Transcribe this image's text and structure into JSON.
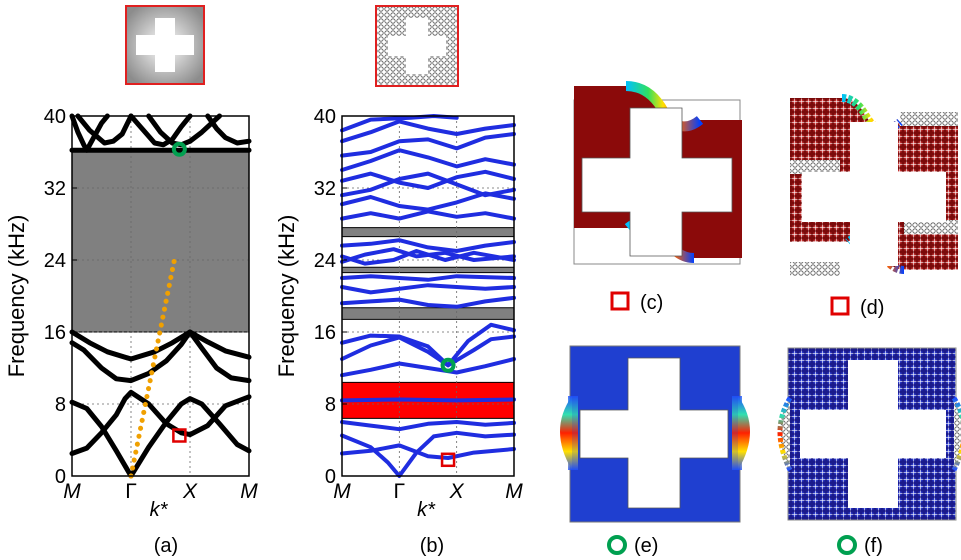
{
  "chart_data": [
    {
      "panel": "(a)",
      "type": "line",
      "ylabel": "Frequency (kHz)",
      "xlabel": "k*",
      "x_ticks": [
        "M",
        "Γ",
        "X",
        "M"
      ],
      "ylim": [
        0,
        40
      ],
      "y_ticks": [
        "0",
        "8",
        "16",
        "24",
        "32",
        "40"
      ],
      "grid": true,
      "band_gaps": [
        {
          "from": 16.0,
          "to": 36.2,
          "color": "#808080"
        }
      ],
      "bands": [
        [
          [
            0,
            40.0
          ],
          [
            0.1,
            38.2
          ],
          [
            0.2,
            36.8
          ],
          [
            0.25,
            36.2
          ],
          [
            0.3,
            36.8
          ],
          [
            0.4,
            38.0
          ],
          [
            0.5,
            39.2
          ],
          [
            0.6,
            40.0
          ]
        ],
        [
          [
            0.1,
            40.0
          ],
          [
            0.3,
            38.4
          ],
          [
            0.55,
            37.0
          ],
          [
            0.7,
            37.2
          ],
          [
            0.85,
            38.0
          ],
          [
            1.0,
            40.0
          ]
        ],
        [
          [
            1.0,
            40.0
          ],
          [
            1.2,
            38.5
          ],
          [
            1.4,
            37.0
          ],
          [
            1.55,
            36.8
          ],
          [
            1.7,
            37.4
          ],
          [
            1.85,
            38.8
          ],
          [
            2.0,
            40.0
          ]
        ],
        [
          [
            1.3,
            40.0
          ],
          [
            1.5,
            38.2
          ],
          [
            1.7,
            37.0
          ],
          [
            1.85,
            36.8
          ],
          [
            2.0,
            37.2
          ]
        ],
        [
          [
            2.0,
            37.2
          ],
          [
            2.2,
            38.2
          ],
          [
            2.4,
            39.4
          ],
          [
            2.5,
            40.0
          ]
        ],
        [
          [
            2.3,
            40.0
          ],
          [
            2.45,
            38.6
          ],
          [
            2.6,
            37.6
          ],
          [
            2.8,
            37.0
          ],
          [
            3.0,
            37.2
          ]
        ],
        [
          [
            0,
            36.2
          ],
          [
            1.0,
            36.2
          ],
          [
            2.0,
            36.2
          ],
          [
            3.0,
            36.2
          ]
        ],
        [
          [
            0,
            16.0
          ],
          [
            0.3,
            14.8
          ],
          [
            0.6,
            13.8
          ],
          [
            1.0,
            13.0
          ],
          [
            1.4,
            13.8
          ],
          [
            1.7,
            14.8
          ],
          [
            2.0,
            16.0
          ],
          [
            2.3,
            14.9
          ],
          [
            2.6,
            13.9
          ],
          [
            3.0,
            13.2
          ]
        ],
        [
          [
            0,
            14.8
          ],
          [
            0.2,
            14.0
          ],
          [
            0.5,
            12.0
          ],
          [
            0.75,
            10.8
          ],
          [
            1.0,
            10.6
          ],
          [
            1.3,
            11.4
          ],
          [
            1.6,
            12.8
          ],
          [
            1.85,
            14.6
          ],
          [
            2.0,
            16.0
          ],
          [
            2.2,
            14.2
          ],
          [
            2.45,
            12.0
          ],
          [
            2.7,
            10.9
          ],
          [
            3.0,
            10.6
          ]
        ],
        [
          [
            0,
            8.2
          ],
          [
            0.25,
            7.5
          ],
          [
            0.5,
            5.5
          ],
          [
            0.75,
            2.8
          ],
          [
            1.0,
            0.0
          ],
          [
            1.3,
            3.2
          ],
          [
            1.6,
            6.0
          ],
          [
            1.85,
            8.0
          ],
          [
            2.0,
            8.6
          ],
          [
            2.2,
            8.0
          ],
          [
            2.5,
            5.8
          ],
          [
            2.8,
            3.5
          ],
          [
            3.0,
            2.8
          ]
        ],
        [
          [
            0,
            2.5
          ],
          [
            0.25,
            3.1
          ],
          [
            0.5,
            4.8
          ],
          [
            0.75,
            6.8
          ],
          [
            0.9,
            8.6
          ],
          [
            1.0,
            9.3
          ],
          [
            1.3,
            8.0
          ],
          [
            1.6,
            5.8
          ],
          [
            1.85,
            4.8
          ],
          [
            2.0,
            4.6
          ],
          [
            2.3,
            5.6
          ],
          [
            2.6,
            7.8
          ],
          [
            3.0,
            8.8
          ]
        ]
      ],
      "dotted_line": {
        "color": "#f0a000",
        "points": [
          [
            1.0,
            0.0
          ],
          [
            1.75,
            24.5
          ]
        ]
      },
      "markers": [
        {
          "shape": "circle",
          "color": "#00a050",
          "x": 1.82,
          "y": 36.3
        },
        {
          "shape": "square",
          "color": "#e00000",
          "x": 1.82,
          "y": 4.5
        }
      ]
    },
    {
      "panel": "(b)",
      "type": "line",
      "ylabel": "Frequency (kHz)",
      "xlabel": "k*",
      "x_ticks": [
        "M",
        "Γ",
        "X",
        "M"
      ],
      "ylim": [
        0,
        40
      ],
      "y_ticks": [
        "0",
        "8",
        "16",
        "24",
        "32",
        "40"
      ],
      "grid": true,
      "band_gaps": [
        {
          "from": 6.4,
          "to": 10.4,
          "color": "#ff0000"
        },
        {
          "from": 17.4,
          "to": 18.7,
          "color": "#808080"
        },
        {
          "from": 22.6,
          "to": 23.2,
          "color": "#808080"
        },
        {
          "from": 26.6,
          "to": 27.6,
          "color": "#808080"
        }
      ],
      "bands": [
        [
          [
            0,
            2.5
          ],
          [
            0.5,
            2.8
          ],
          [
            1.0,
            3.4
          ],
          [
            1.5,
            2.2
          ],
          [
            1.85,
            2.0
          ],
          [
            2.3,
            2.6
          ],
          [
            3.0,
            3.0
          ]
        ],
        [
          [
            0,
            4.5
          ],
          [
            0.5,
            3.2
          ],
          [
            0.8,
            1.5
          ],
          [
            1.0,
            0.0
          ],
          [
            1.3,
            2.6
          ],
          [
            1.6,
            4.4
          ],
          [
            2.0,
            4.8
          ],
          [
            2.5,
            4.4
          ],
          [
            3.0,
            4.6
          ]
        ],
        [
          [
            0,
            6.0
          ],
          [
            0.5,
            5.6
          ],
          [
            1.0,
            5.2
          ],
          [
            1.5,
            5.8
          ],
          [
            2.0,
            6.0
          ],
          [
            2.5,
            5.7
          ],
          [
            3.0,
            5.9
          ]
        ],
        [
          [
            0,
            8.4
          ],
          [
            1.0,
            8.5
          ],
          [
            2.0,
            8.4
          ],
          [
            3.0,
            8.5
          ]
        ],
        [
          [
            0,
            11.2
          ],
          [
            0.5,
            11.8
          ],
          [
            1.0,
            12.5
          ],
          [
            1.5,
            12.0
          ],
          [
            2.0,
            11.5
          ],
          [
            2.5,
            12.2
          ],
          [
            3.0,
            13.0
          ]
        ],
        [
          [
            0,
            13.0
          ],
          [
            0.5,
            14.5
          ],
          [
            1.0,
            15.4
          ],
          [
            1.5,
            13.8
          ],
          [
            1.85,
            12.3
          ],
          [
            2.3,
            14.0
          ],
          [
            2.6,
            15.2
          ],
          [
            3.0,
            15.5
          ]
        ],
        [
          [
            0,
            14.8
          ],
          [
            0.5,
            15.6
          ],
          [
            1.0,
            15.5
          ],
          [
            1.5,
            14.4
          ],
          [
            1.85,
            12.3
          ],
          [
            2.2,
            15.0
          ],
          [
            2.6,
            16.8
          ],
          [
            3.0,
            16.2
          ]
        ],
        [
          [
            0,
            19.2
          ],
          [
            0.5,
            19.4
          ],
          [
            1.0,
            19.6
          ],
          [
            1.5,
            19.0
          ],
          [
            2.0,
            18.8
          ],
          [
            2.5,
            19.4
          ],
          [
            3.0,
            19.8
          ]
        ],
        [
          [
            0,
            21.0
          ],
          [
            0.5,
            20.4
          ],
          [
            1.0,
            20.8
          ],
          [
            1.5,
            21.2
          ],
          [
            2.0,
            21.0
          ],
          [
            2.5,
            20.8
          ],
          [
            3.0,
            21.0
          ]
        ],
        [
          [
            0,
            22.0
          ],
          [
            0.5,
            22.2
          ],
          [
            1.0,
            22.0
          ],
          [
            1.5,
            21.8
          ],
          [
            2.0,
            22.2
          ],
          [
            3.0,
            22.0
          ]
        ],
        [
          [
            0,
            23.8
          ],
          [
            0.4,
            24.6
          ],
          [
            0.9,
            25.2
          ],
          [
            1.3,
            24.4
          ],
          [
            1.8,
            24.8
          ],
          [
            2.3,
            24.0
          ],
          [
            3.0,
            24.4
          ]
        ],
        [
          [
            0,
            24.4
          ],
          [
            0.4,
            23.6
          ],
          [
            0.9,
            24.0
          ],
          [
            1.3,
            25.0
          ],
          [
            1.8,
            24.0
          ],
          [
            2.3,
            24.8
          ],
          [
            3.0,
            24.0
          ]
        ],
        [
          [
            0,
            25.6
          ],
          [
            0.5,
            25.8
          ],
          [
            1.0,
            26.2
          ],
          [
            1.5,
            25.4
          ],
          [
            2.0,
            25.0
          ],
          [
            2.5,
            25.6
          ],
          [
            3.0,
            26.0
          ]
        ],
        [
          [
            0,
            28.6
          ],
          [
            0.5,
            29.2
          ],
          [
            1.0,
            28.6
          ],
          [
            1.5,
            29.4
          ],
          [
            2.0,
            28.8
          ],
          [
            2.5,
            29.2
          ],
          [
            3.0,
            28.6
          ]
        ],
        [
          [
            0,
            30.2
          ],
          [
            0.5,
            31.0
          ],
          [
            1.0,
            30.0
          ],
          [
            1.5,
            29.6
          ],
          [
            2.0,
            30.4
          ],
          [
            2.5,
            31.4
          ],
          [
            3.0,
            30.8
          ]
        ],
        [
          [
            0,
            31.2
          ],
          [
            0.5,
            31.8
          ],
          [
            1.0,
            33.0
          ],
          [
            1.5,
            33.6
          ],
          [
            2.0,
            32.4
          ],
          [
            2.5,
            31.2
          ],
          [
            3.0,
            31.8
          ]
        ],
        [
          [
            0,
            32.8
          ],
          [
            0.5,
            33.6
          ],
          [
            1.0,
            32.6
          ],
          [
            1.5,
            32.0
          ],
          [
            2.0,
            33.2
          ],
          [
            2.5,
            33.8
          ],
          [
            3.0,
            33.0
          ]
        ],
        [
          [
            0,
            34.0
          ],
          [
            0.5,
            35.0
          ],
          [
            1.0,
            36.2
          ],
          [
            1.5,
            35.4
          ],
          [
            2.0,
            34.4
          ],
          [
            2.5,
            35.2
          ],
          [
            3.0,
            34.6
          ]
        ],
        [
          [
            0,
            35.6
          ],
          [
            0.5,
            36.0
          ],
          [
            1.0,
            37.2
          ],
          [
            1.5,
            37.4
          ],
          [
            2.0,
            36.4
          ],
          [
            2.5,
            37.6
          ],
          [
            3.0,
            38.0
          ]
        ],
        [
          [
            0,
            37.2
          ],
          [
            0.5,
            38.2
          ],
          [
            1.0,
            39.4
          ],
          [
            1.5,
            38.6
          ],
          [
            2.0,
            38.0
          ],
          [
            2.5,
            38.6
          ],
          [
            3.0,
            39.0
          ]
        ],
        [
          [
            0,
            38.4
          ],
          [
            0.5,
            39.6
          ],
          [
            1.2,
            39.8
          ],
          [
            1.6,
            40.0
          ],
          [
            2.0,
            39.8
          ]
        ]
      ],
      "markers": [
        {
          "shape": "circle",
          "color": "#00a050",
          "x": 1.85,
          "y": 12.3
        },
        {
          "shape": "square",
          "color": "#e00000",
          "x": 1.85,
          "y": 1.8
        }
      ]
    }
  ],
  "panel_labels": {
    "a": "(a)",
    "b": "(b)",
    "c": "(c)",
    "d": "(d)",
    "e": "(e)",
    "f": "(f)"
  },
  "colors": {
    "band_a": "#000000",
    "band_b": "#1f2de0",
    "gap_gray": "#808080",
    "gap_red": "#ff0000",
    "marker_green": "#00a050",
    "marker_red": "#e00000",
    "mode_dark_red": "#8b0a0a",
    "mode_blue": "#1f3fd0"
  }
}
